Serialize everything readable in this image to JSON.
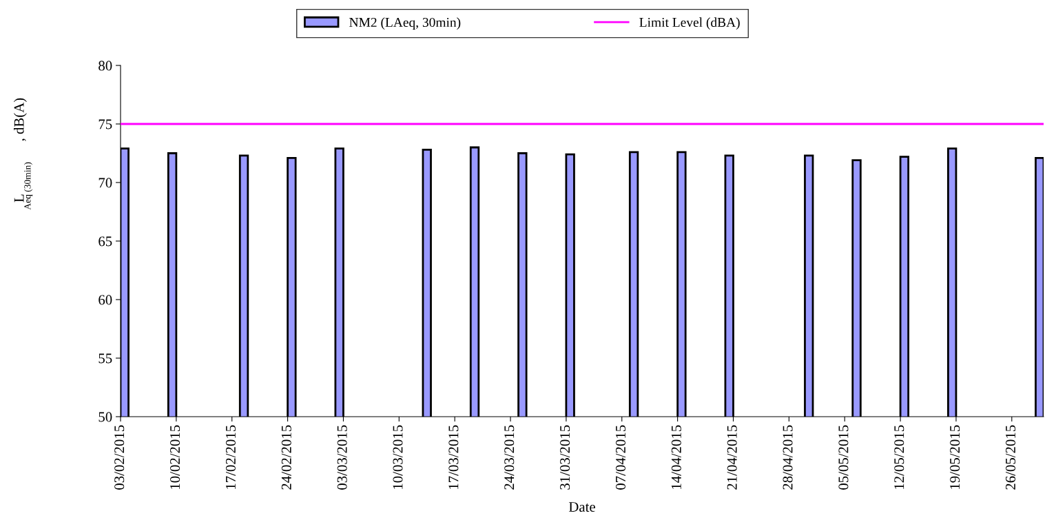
{
  "chart_data": {
    "type": "bar",
    "xlabel": "Date",
    "ylabel": "L$_{Aeq (30min)}$, dB(A)",
    "x": [
      "2015-02-03",
      "2015-02-09",
      "2015-02-18",
      "2015-02-24",
      "2015-03-02",
      "2015-03-13",
      "2015-03-19",
      "2015-03-25",
      "2015-03-31",
      "2015-04-08",
      "2015-04-14",
      "2015-04-20",
      "2015-04-30",
      "2015-05-06",
      "2015-05-12",
      "2015-05-18",
      "2015-05-29"
    ],
    "series": [
      {
        "name": "NM2 (LAeq, 30min)",
        "color": "#9999ff",
        "values": [
          72.9,
          72.5,
          72.3,
          72.1,
          72.9,
          72.8,
          73.0,
          72.5,
          72.4,
          72.6,
          72.6,
          72.3,
          72.3,
          71.9,
          72.2,
          72.9,
          72.1
        ]
      }
    ],
    "ref_lines": [
      {
        "axis": "y",
        "value": 75,
        "label": "Limit Level (dBA)",
        "color": "#ff00ff",
        "line_style": "solid"
      }
    ],
    "xlim": [
      "2015-02-03",
      "2015-05-30"
    ],
    "xticks": [
      {
        "value": "2015-02-03",
        "label": "03/02/2015"
      },
      {
        "value": "2015-02-10",
        "label": "10/02/2015"
      },
      {
        "value": "2015-02-17",
        "label": "17/02/2015"
      },
      {
        "value": "2015-02-24",
        "label": "24/02/2015"
      },
      {
        "value": "2015-03-03",
        "label": "03/03/2015"
      },
      {
        "value": "2015-03-10",
        "label": "10/03/2015"
      },
      {
        "value": "2015-03-17",
        "label": "17/03/2015"
      },
      {
        "value": "2015-03-24",
        "label": "24/03/2015"
      },
      {
        "value": "2015-03-31",
        "label": "31/03/2015"
      },
      {
        "value": "2015-04-07",
        "label": "07/04/2015"
      },
      {
        "value": "2015-04-14",
        "label": "14/04/2015"
      },
      {
        "value": "2015-04-21",
        "label": "21/04/2015"
      },
      {
        "value": "2015-04-28",
        "label": "28/04/2015"
      },
      {
        "value": "2015-05-05",
        "label": "05/05/2015"
      },
      {
        "value": "2015-05-12",
        "label": "12/05/2015"
      },
      {
        "value": "2015-05-19",
        "label": "19/05/2015"
      },
      {
        "value": "2015-05-26",
        "label": "26/05/2015"
      }
    ],
    "ylim": [
      50,
      80
    ],
    "yticks": [
      50,
      55,
      60,
      65,
      70,
      75,
      80
    ],
    "legend": "top",
    "grid": false
  }
}
